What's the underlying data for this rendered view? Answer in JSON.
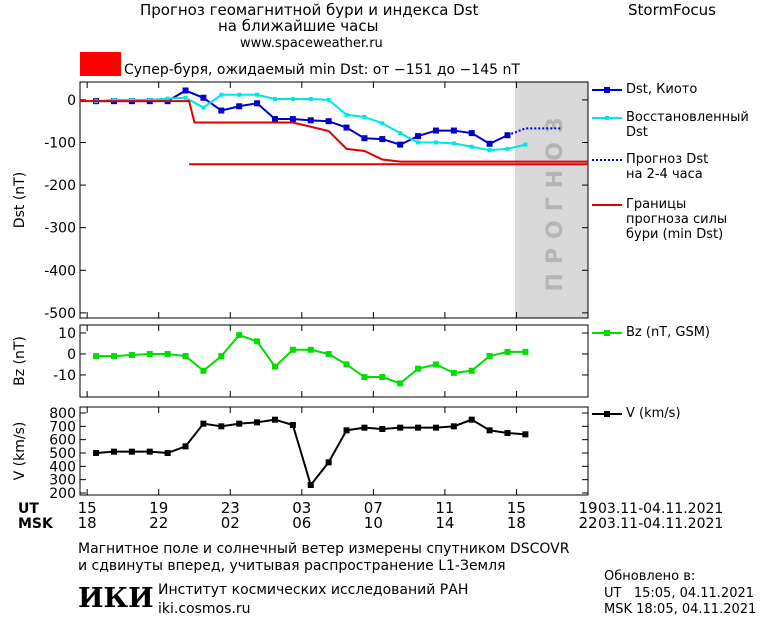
{
  "header": {
    "title": "Прогноз геомагнитной бури и индекса Dst",
    "subtitle": "на ближайшие часы",
    "url": "www.spaceweather.ru",
    "brand": "StormFocus",
    "alert": "Супер-буря, ожидаемый min Dst: от −151 до −145 nT"
  },
  "chart_data": [
    {
      "type": "line",
      "ylabel": "Dst (nT)",
      "xlim": [
        -0.4,
        28
      ],
      "ylim": [
        -512,
        42
      ],
      "yticks": [
        0,
        -100,
        -200,
        -300,
        -400,
        -500
      ],
      "forecast_label": "ПРОГНОЗ",
      "series": [
        {
          "name": "Dst, Киото",
          "color": "#0000cc",
          "marker": "square",
          "x": [
            0.5,
            1.5,
            2.5,
            3.5,
            4.5,
            5.5,
            6.5,
            7.5,
            8.5,
            9.5,
            10.5,
            11.5,
            12.5,
            13.5,
            14.5,
            15.5,
            16.5,
            17.5,
            18.5,
            19.5,
            20.5,
            21.5,
            22.5,
            23.5
          ],
          "values": [
            -3,
            -3,
            -3,
            -3,
            -3,
            22,
            5,
            -25,
            -15,
            -8,
            -45,
            -45,
            -48,
            -50,
            -65,
            -90,
            -92,
            -105,
            -85,
            -72,
            -72,
            -78,
            -103,
            -83
          ]
        },
        {
          "name": "Восстановленный\nDst",
          "color": "#00e5e5",
          "marker": "small-square",
          "x": [
            0.5,
            1.5,
            2.5,
            3.5,
            4.5,
            5.5,
            6.5,
            7.5,
            8.5,
            9.5,
            10.5,
            11.5,
            12.5,
            13.5,
            14.5,
            15.5,
            16.5,
            17.5,
            18.5,
            19.5,
            20.5,
            21.5,
            22.5,
            23.5,
            24.5
          ],
          "values": [
            -3,
            0,
            0,
            0,
            3,
            5,
            -18,
            12,
            12,
            12,
            2,
            2,
            2,
            0,
            -35,
            -40,
            -55,
            -78,
            -100,
            -100,
            -102,
            -110,
            -118,
            -115,
            -105
          ]
        },
        {
          "name": "Прогноз Dst\nна 2-4 часа",
          "color": "#0000cc",
          "dash": "dotted",
          "x": [
            23.5,
            24.5,
            25.5,
            26.5
          ],
          "values": [
            -83,
            -67,
            -67,
            -67
          ]
        },
        {
          "name": "Границы\nпрогноза силы\nбури (min Dst)",
          "color": "#e00000",
          "x": [
            -0.4,
            5.7,
            6.0,
            11.5,
            13.5,
            14.5,
            15.5,
            16.5,
            17.5,
            28,
            28,
            5.7,
            28
          ],
          "values": [
            -3,
            -3,
            -53,
            -53,
            -73,
            -115,
            -120,
            -140,
            -145,
            -145,
            null,
            -151,
            -151
          ]
        }
      ]
    },
    {
      "type": "line",
      "ylabel": "Bz (nT)",
      "xlim": [
        -0.4,
        28
      ],
      "ylim": [
        -20.5,
        13.8
      ],
      "yticks": [
        -10,
        0,
        10
      ],
      "series": [
        {
          "name": "Bz (nT, GSM)",
          "color": "#00dd00",
          "marker": "square",
          "x": [
            0.5,
            1.5,
            2.5,
            3.5,
            4.5,
            5.5,
            6.5,
            7.5,
            8.5,
            9.5,
            10.5,
            11.5,
            12.5,
            13.5,
            14.5,
            15.5,
            16.5,
            17.5,
            18.5,
            19.5,
            20.5,
            21.5,
            22.5,
            23.5,
            24.5
          ],
          "values": [
            -1,
            -1,
            -0.5,
            0,
            0,
            -1,
            -8,
            -1,
            9,
            6,
            -6,
            2,
            2,
            0,
            -5,
            -11,
            -11,
            -14,
            -7,
            -5,
            -9,
            -8,
            -1,
            1,
            1
          ]
        }
      ]
    },
    {
      "type": "line",
      "ylabel": "V (km/s)",
      "xlim": [
        -0.4,
        28
      ],
      "ylim": [
        185,
        845
      ],
      "yticks": [
        200,
        300,
        400,
        500,
        600,
        700,
        800
      ],
      "series": [
        {
          "name": "V (km/s)",
          "color": "#000000",
          "marker": "square",
          "x": [
            0.5,
            1.5,
            2.5,
            3.5,
            4.5,
            5.5,
            6.5,
            7.5,
            8.5,
            9.5,
            10.5,
            11.5,
            12.5,
            13.5,
            14.5,
            15.5,
            16.5,
            17.5,
            18.5,
            19.5,
            20.5,
            21.5,
            22.5,
            23.5,
            24.5
          ],
          "values": [
            500,
            510,
            510,
            510,
            500,
            550,
            720,
            700,
            720,
            730,
            750,
            710,
            260,
            430,
            670,
            690,
            680,
            690,
            690,
            690,
            700,
            750,
            670,
            650,
            640
          ]
        }
      ],
      "xlabel": "UT",
      "x2label": "MSK",
      "date_range": "03.11-04.11.2021",
      "date_range2": "03.11-04.11.2021",
      "xticks": [
        {
          "value": 0,
          "label": "15"
        },
        {
          "value": 4,
          "label": "19"
        },
        {
          "value": 8,
          "label": "23"
        },
        {
          "value": 12,
          "label": "03"
        },
        {
          "value": 16,
          "label": "07"
        },
        {
          "value": 20,
          "label": "11"
        },
        {
          "value": 24,
          "label": "15"
        },
        {
          "value": 28,
          "label": "19"
        }
      ],
      "x2ticks": [
        {
          "value": 0,
          "label": "18"
        },
        {
          "value": 4,
          "label": "22"
        },
        {
          "value": 8,
          "label": "02"
        },
        {
          "value": 12,
          "label": "06"
        },
        {
          "value": 16,
          "label": "10"
        },
        {
          "value": 20,
          "label": "14"
        },
        {
          "value": 24,
          "label": "18"
        },
        {
          "value": 28,
          "label": "22"
        }
      ]
    }
  ],
  "footer": {
    "note": "Магнитное поле и солнечный ветер измерены спутником DSCOVR\nи сдвинуты вперед, учитывая распространение L1-Земля",
    "logo": "ИКИ",
    "institute": "Институт космических исследований РАН",
    "site": "iki.cosmos.ru",
    "updated": "Обновлено в:",
    "updated_ut": "UT   15:05, 04.11.2021",
    "updated_msk": "MSK 18:05, 04.11.2021"
  }
}
